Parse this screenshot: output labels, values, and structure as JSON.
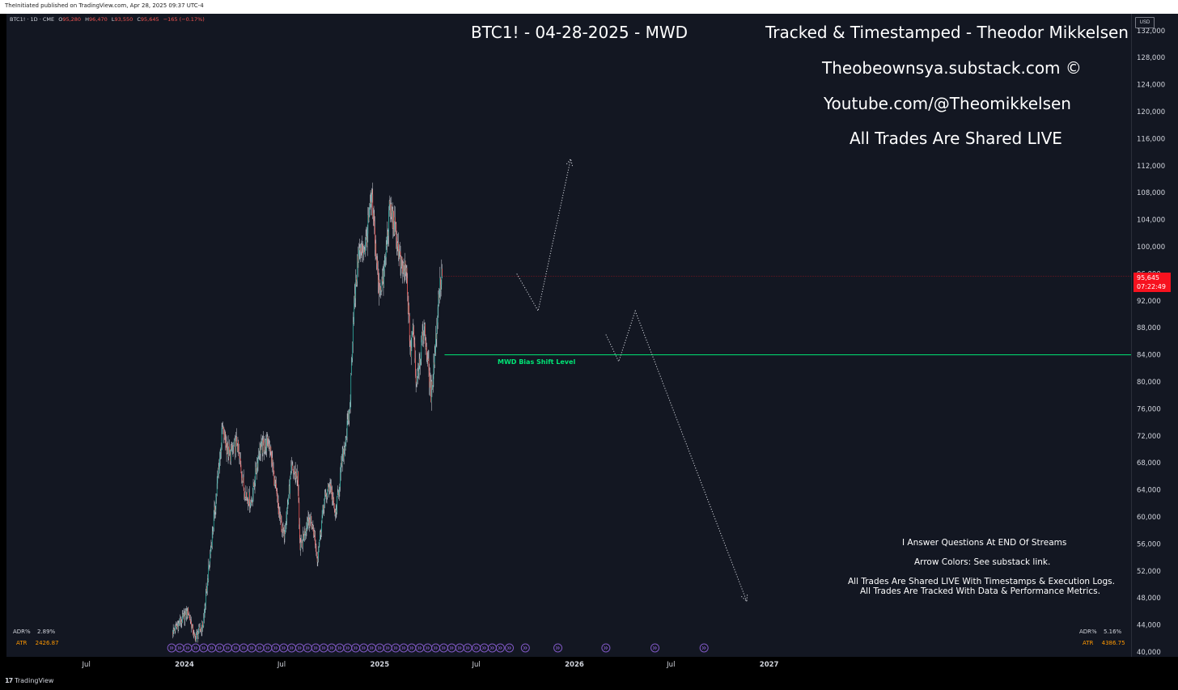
{
  "publisher_line": "TheInitiated published on TradingView.com, Apr 28, 2025 09:37 UTC-4",
  "legend": {
    "symbol": "BTC1! · 1D · CME",
    "o_label": "O",
    "o_value": "95,280",
    "h_label": "H",
    "h_value": "96,470",
    "l_label": "L",
    "l_value": "93,550",
    "c_label": "C",
    "c_value": "95,645",
    "change": "−165 (−0.17%)"
  },
  "overlay": {
    "title": "BTC1! - 04-28-2025 - MWD",
    "tracked": "Tracked & Timestamped - Theodor Mikkelsen",
    "substack": "Theobeownsya.substack.com ©",
    "youtube": "Youtube.com/@Theomikkelsen",
    "live": "All Trades Are Shared LIVE",
    "questions": "I Answer Questions At END Of Streams",
    "arrow_colors": "Arrow Colors: See substack link.",
    "shared_logs": "All Trades Are Shared LIVE With Timestamps & Execution Logs.",
    "tracked_metrics": "All Trades Are Tracked With Data & Performance Metrics."
  },
  "indicators": {
    "adr_left_label": "ADR%",
    "adr_left_value": "2.89%",
    "atr_left_label": "ATR",
    "atr_left_value": "2426.87",
    "adr_right_label": "ADR%",
    "adr_right_value": "5.16%",
    "atr_right_label": "ATR",
    "atr_right_value": "4386.75"
  },
  "currency": "USD",
  "last_price": "95,645",
  "countdown": "07:22:49",
  "footer_brand": "TradingView",
  "colors": {
    "background": "#131722",
    "up_candle": "#26a69a",
    "down_candle": "#ef5350",
    "bias_line": "#00e676",
    "price_tag": "#f7121f",
    "atr_text": "#ff9800",
    "event_icon": "#7e57c2"
  },
  "chart_data": {
    "type": "candlestick",
    "title": "BTC1! - 04-28-2025 - MWD",
    "xlabel": "",
    "ylabel": "",
    "ylim": [
      40000,
      133500
    ],
    "x_tick_labels": [
      {
        "label": "Jul",
        "date": "2023-07-01"
      },
      {
        "label": "2024",
        "date": "2024-01-01"
      },
      {
        "label": "Jul",
        "date": "2024-07-01"
      },
      {
        "label": "2025",
        "date": "2025-01-01"
      },
      {
        "label": "Jul",
        "date": "2025-07-01"
      },
      {
        "label": "2026",
        "date": "2026-01-01"
      },
      {
        "label": "Jul",
        "date": "2026-07-01"
      },
      {
        "label": "2027",
        "date": "2027-01-01"
      }
    ],
    "y_tick_labels": [
      "132,000",
      "128,000",
      "124,000",
      "120,000",
      "116,000",
      "112,000",
      "108,000",
      "104,000",
      "100,000",
      "96,000",
      "92,000",
      "88,000",
      "84,000",
      "80,000",
      "76,000",
      "72,000",
      "68,000",
      "64,000",
      "60,000",
      "56,000",
      "52,000",
      "48,000",
      "44,000",
      "40,000"
    ],
    "grid": false,
    "price_path": [
      [
        "2023-12-10",
        43000
      ],
      [
        "2023-12-25",
        44500
      ],
      [
        "2024-01-08",
        46000
      ],
      [
        "2024-01-20",
        42000
      ],
      [
        "2024-02-05",
        44000
      ],
      [
        "2024-02-15",
        52000
      ],
      [
        "2024-02-28",
        62000
      ],
      [
        "2024-03-12",
        73000
      ],
      [
        "2024-03-25",
        69000
      ],
      [
        "2024-04-08",
        71000
      ],
      [
        "2024-04-22",
        64000
      ],
      [
        "2024-05-05",
        62000
      ],
      [
        "2024-05-20",
        70000
      ],
      [
        "2024-06-08",
        71000
      ],
      [
        "2024-06-25",
        61000
      ],
      [
        "2024-07-05",
        57000
      ],
      [
        "2024-07-20",
        67000
      ],
      [
        "2024-07-31",
        66000
      ],
      [
        "2024-08-05",
        55000
      ],
      [
        "2024-08-20",
        60000
      ],
      [
        "2024-08-30",
        58000
      ],
      [
        "2024-09-06",
        54000
      ],
      [
        "2024-09-18",
        62000
      ],
      [
        "2024-09-30",
        65000
      ],
      [
        "2024-10-10",
        60000
      ],
      [
        "2024-10-22",
        68000
      ],
      [
        "2024-10-30",
        72000
      ],
      [
        "2024-11-06",
        76000
      ],
      [
        "2024-11-12",
        89000
      ],
      [
        "2024-11-22",
        99000
      ],
      [
        "2024-12-05",
        100000
      ],
      [
        "2024-12-17",
        107000
      ],
      [
        "2024-12-30",
        94000
      ],
      [
        "2025-01-08",
        95000
      ],
      [
        "2025-01-20",
        106000
      ],
      [
        "2025-01-31",
        102000
      ],
      [
        "2025-02-10",
        97000
      ],
      [
        "2025-02-20",
        96000
      ],
      [
        "2025-02-28",
        84000
      ],
      [
        "2025-03-05",
        89000
      ],
      [
        "2025-03-10",
        80000
      ],
      [
        "2025-03-18",
        84000
      ],
      [
        "2025-03-25",
        88000
      ],
      [
        "2025-04-01",
        83000
      ],
      [
        "2025-04-07",
        78000
      ],
      [
        "2025-04-15",
        85000
      ],
      [
        "2025-04-22",
        93500
      ],
      [
        "2025-04-28",
        95645
      ]
    ],
    "bias_level": {
      "label": "MWD Bias Shift Level",
      "value": 84000,
      "from": "2025-04-28"
    },
    "projected_paths": [
      {
        "name": "bullish",
        "points": [
          [
            "2025-09-15",
            96000
          ],
          [
            "2025-10-25",
            90500
          ],
          [
            "2025-12-25",
            113000
          ]
        ]
      },
      {
        "name": "bearish",
        "points": [
          [
            "2026-03-01",
            87000
          ],
          [
            "2026-03-25",
            83000
          ],
          [
            "2026-04-25",
            90500
          ],
          [
            "2026-11-20",
            47500
          ]
        ]
      }
    ],
    "event_markers": [
      "2023-12-08",
      "2023-12-23",
      "2024-01-07",
      "2024-01-22",
      "2024-02-06",
      "2024-02-21",
      "2024-03-07",
      "2024-03-22",
      "2024-04-06",
      "2024-04-21",
      "2024-05-06",
      "2024-05-21",
      "2024-06-05",
      "2024-06-20",
      "2024-07-05",
      "2024-07-20",
      "2024-08-04",
      "2024-08-19",
      "2024-09-03",
      "2024-09-18",
      "2024-10-03",
      "2024-10-18",
      "2024-11-02",
      "2024-11-17",
      "2024-12-02",
      "2024-12-17",
      "2025-01-01",
      "2025-01-16",
      "2025-01-31",
      "2025-02-15",
      "2025-03-02",
      "2025-03-17",
      "2025-04-01",
      "2025-04-16",
      "2025-05-01",
      "2025-05-16",
      "2025-05-31",
      "2025-06-15",
      "2025-07-01",
      "2025-07-16",
      "2025-07-31",
      "2025-08-15",
      "2025-09-01",
      "2025-10-01",
      "2025-12-01",
      "2026-03-01",
      "2026-06-01",
      "2026-09-01"
    ]
  }
}
